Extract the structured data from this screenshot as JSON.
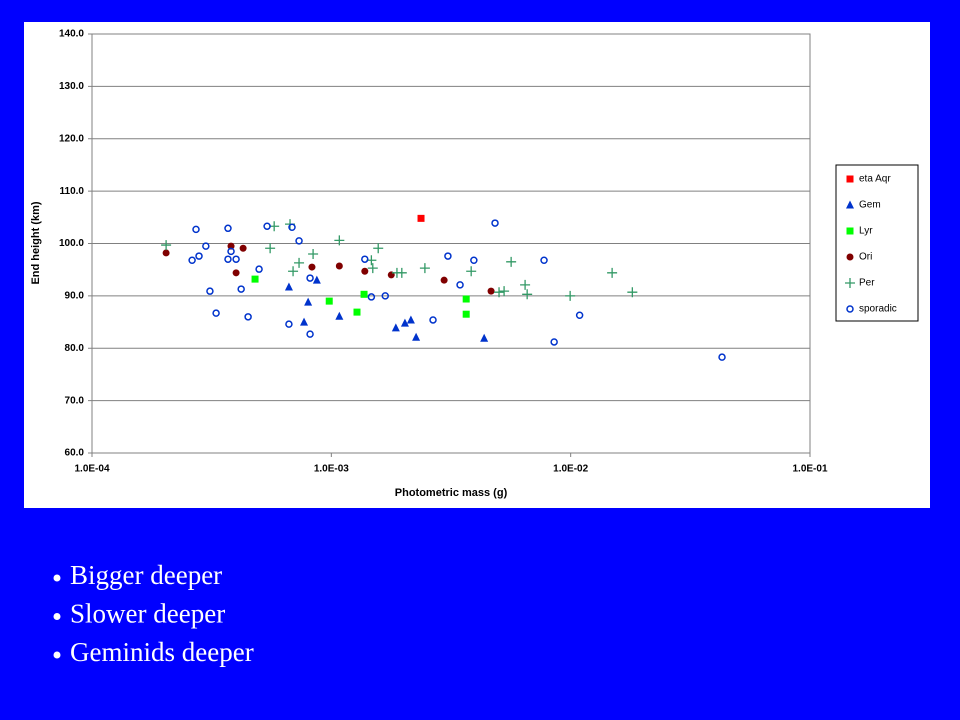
{
  "chart_data": {
    "type": "scatter",
    "xlabel": "Photometric mass (g)",
    "ylabel": "End height (km)",
    "xscale": "log",
    "grid": true,
    "legend": "right",
    "xlim": [
      0.0001,
      0.1
    ],
    "xticks": [
      {
        "value": 0.0001,
        "label": "1.0E-04"
      },
      {
        "value": 0.001,
        "label": "1.0E-03"
      },
      {
        "value": 0.01,
        "label": "1.0E-02"
      },
      {
        "value": 0.1,
        "label": "1.0E-01"
      }
    ],
    "ylim": [
      60,
      140
    ],
    "yticks": [
      {
        "value": 60,
        "label": "60.0"
      },
      {
        "value": 70,
        "label": "70.0"
      },
      {
        "value": 80,
        "label": "80.0"
      },
      {
        "value": 90,
        "label": "90.0"
      },
      {
        "value": 100,
        "label": "100.0"
      },
      {
        "value": 110,
        "label": "110.0"
      },
      {
        "value": 120,
        "label": "120.0"
      },
      {
        "value": 130,
        "label": "130.0"
      },
      {
        "value": 140,
        "label": "140.0"
      }
    ],
    "series": [
      {
        "name": "eta Aqr",
        "color": "#ff0000",
        "marker": "square",
        "x": [
          0.00237
        ],
        "values": [
          104.8
        ]
      },
      {
        "name": "Gem",
        "color": "#0033cc",
        "marker": "triangle",
        "x": [
          0.000665,
          0.000769,
          0.0008,
          0.00087,
          0.00108,
          0.00186,
          0.00203,
          0.00215,
          0.00226,
          0.00435
        ],
        "values": [
          91.7,
          85.0,
          88.8,
          93.0,
          86.1,
          83.9,
          84.8,
          85.4,
          82.1,
          81.9
        ]
      },
      {
        "name": "Lyr",
        "color": "#00ff00",
        "marker": "square",
        "x": [
          0.00048,
          0.00098,
          0.00128,
          0.00137,
          0.00366,
          0.00366
        ],
        "values": [
          93.2,
          89.0,
          86.9,
          90.3,
          89.4,
          86.5
        ]
      },
      {
        "name": "Ori",
        "color": "#800000",
        "marker": "circle",
        "x": [
          0.000204,
          0.000381,
          0.0004,
          0.000428,
          0.00083,
          0.00108,
          0.00138,
          0.00178,
          0.00296,
          0.00465
        ],
        "values": [
          98.2,
          99.5,
          94.4,
          99.1,
          95.5,
          95.7,
          94.7,
          94.0,
          93.0,
          90.9
        ]
      },
      {
        "name": "Per",
        "color": "#339966",
        "marker": "plus",
        "x": [
          0.000204,
          0.000555,
          0.000577,
          0.000672,
          0.000692,
          0.000733,
          0.000839,
          0.00108,
          0.00147,
          0.00149,
          0.00157,
          0.00188,
          0.00197,
          0.00246,
          0.00384,
          0.00502,
          0.00527,
          0.00564,
          0.00645,
          0.00658,
          0.00995,
          0.0149,
          0.0181
        ],
        "values": [
          99.7,
          99.1,
          103.3,
          103.7,
          94.7,
          96.3,
          98.0,
          100.6,
          96.8,
          95.3,
          99.1,
          94.4,
          94.4,
          95.3,
          94.7,
          90.7,
          90.9,
          96.5,
          92.1,
          90.3,
          90.0,
          94.4,
          90.7
        ]
      },
      {
        "name": "sporadic",
        "color": "#0033cc",
        "marker": "open-circle",
        "x": [
          0.000262,
          0.000272,
          0.00028,
          0.000299,
          0.000311,
          0.00033,
          0.00037,
          0.00037,
          0.000381,
          0.0004,
          0.00042,
          0.000449,
          0.000499,
          0.000539,
          0.000665,
          0.000685,
          0.000733,
          0.000815,
          0.000815,
          0.00138,
          0.00147,
          0.00168,
          0.00266,
          0.00307,
          0.00345,
          0.00394,
          0.00483,
          0.00774,
          0.00853,
          0.0109,
          0.0429
        ],
        "values": [
          96.8,
          102.7,
          97.6,
          99.5,
          90.9,
          86.7,
          102.9,
          97.0,
          98.5,
          97.0,
          91.3,
          86.0,
          95.1,
          103.3,
          84.6,
          103.1,
          100.5,
          93.4,
          82.7,
          97.0,
          89.8,
          90.0,
          85.4,
          97.6,
          92.1,
          96.8,
          103.9,
          96.8,
          81.2,
          86.3,
          78.3
        ]
      }
    ]
  },
  "bullets": [
    "Bigger deeper",
    "Slower deeper",
    "Geminids deeper"
  ]
}
